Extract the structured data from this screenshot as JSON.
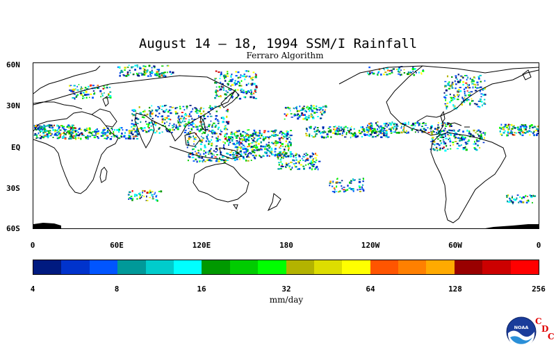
{
  "title": "August 14 – 18, 1994 SSM/I Rainfall",
  "subtitle": "Ferraro Algorithm",
  "map": {
    "lat_labels": [
      "60N",
      "30N",
      "EQ",
      "30S",
      "60S"
    ],
    "lon_labels": [
      "0",
      "60E",
      "120E",
      "180",
      "120W",
      "60W",
      "0"
    ],
    "lat_range": [
      -60,
      60
    ],
    "lon_range": [
      0,
      360
    ]
  },
  "colorbar": {
    "tick_labels": [
      "4",
      "8",
      "16",
      "32",
      "64",
      "128",
      "256"
    ],
    "units": "mm/day",
    "colors": [
      "#001a80",
      "#0033cc",
      "#0055ff",
      "#009999",
      "#00cccc",
      "#00ffff",
      "#009900",
      "#00cc00",
      "#00ff00",
      "#b3b300",
      "#dddd00",
      "#ffff00",
      "#ff5500",
      "#ff8000",
      "#ffaa00",
      "#990000",
      "#cc0000",
      "#ff0000"
    ]
  },
  "logo": {
    "icon": "noaa-logo-icon",
    "text": "NOAA",
    "cdc_letters": [
      "C",
      "D",
      "C"
    ]
  }
}
